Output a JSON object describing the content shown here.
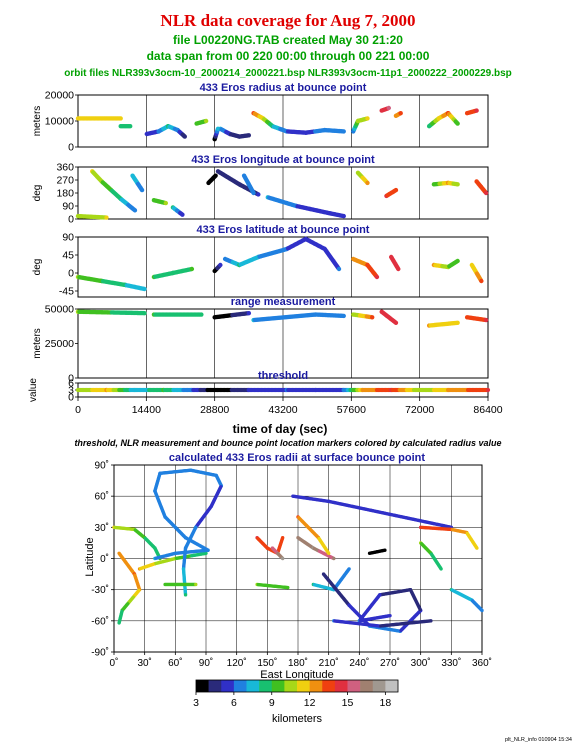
{
  "header": {
    "title": "NLR data coverage for Aug 7, 2000",
    "line1": "file L00220NG.TAB created May 30 21:20",
    "line2": "data span from 00 220 00:00 through 00 221 00:00",
    "line3": "orbit files NLR393v3ocm-10_2000214_2000221.bsp NLR393v3ocm-11p1_2000222_2000229.bsp"
  },
  "caption": "threshold, NLR measurement and bounce point location markers colored by calculated radius value",
  "footer": "plt_NLR_info 010904 15:34",
  "colors": {
    "title": "#e00000",
    "header": "#00a000",
    "panel_title": "#1a1aa0",
    "axis": "#000000"
  },
  "colorbar": {
    "label": "kilometers",
    "ticks": [
      "3",
      "6",
      "9",
      "12",
      "15",
      "18"
    ],
    "range": [
      3,
      19
    ],
    "colors": [
      "#000000",
      "#2a2a7a",
      "#3030c8",
      "#2080e0",
      "#18b8d8",
      "#18c070",
      "#40c020",
      "#a8d818",
      "#f0d010",
      "#f09010",
      "#f04010",
      "#e03040",
      "#d06080",
      "#a08070",
      "#a09890",
      "#c0c0c0"
    ]
  },
  "chart_data": [
    {
      "type": "scatter",
      "title": "433 Eros radius at bounce point",
      "ylabel": "meters",
      "xlabel": "",
      "xlim": [
        0,
        86400
      ],
      "ylim": [
        0,
        20000
      ],
      "yticks": [
        "20000",
        "10000",
        "0"
      ],
      "segments": [
        [
          [
            0,
            11000,
            11
          ],
          [
            9000,
            11000,
            11
          ]
        ],
        [
          [
            9000,
            8000,
            8
          ],
          [
            11000,
            8000,
            8
          ]
        ],
        [
          [
            14500,
            5000,
            5
          ],
          [
            17000,
            6000,
            6
          ],
          [
            19000,
            8000,
            8
          ],
          [
            21000,
            6500,
            6.5
          ],
          [
            22500,
            4000,
            4
          ]
        ],
        [
          [
            25000,
            9000,
            9
          ],
          [
            27000,
            10000,
            10
          ]
        ],
        [
          [
            28800,
            3000,
            3
          ],
          [
            29500,
            7000,
            7
          ]
        ],
        [
          [
            30000,
            7000,
            7
          ],
          [
            32000,
            5000,
            5
          ],
          [
            34000,
            4000,
            4
          ],
          [
            36000,
            4500,
            4.5
          ]
        ],
        [
          [
            37000,
            13000,
            13
          ],
          [
            39000,
            11000,
            11
          ],
          [
            41000,
            8000,
            8
          ],
          [
            44000,
            6000,
            6
          ],
          [
            48000,
            5500,
            5.5
          ],
          [
            52000,
            6500,
            6.5
          ],
          [
            56000,
            6000,
            6
          ]
        ],
        [
          [
            58000,
            6000,
            6
          ],
          [
            59000,
            10000,
            10
          ],
          [
            61000,
            11000,
            11
          ]
        ],
        [
          [
            64000,
            14000,
            14
          ],
          [
            65500,
            15000,
            15
          ]
        ],
        [
          [
            67000,
            12000,
            12
          ],
          [
            68000,
            13000,
            13
          ]
        ],
        [
          [
            74000,
            8000,
            8
          ],
          [
            76000,
            11000,
            11
          ],
          [
            78000,
            13000,
            13
          ],
          [
            80000,
            9000,
            9
          ]
        ],
        [
          [
            82000,
            13000,
            13
          ],
          [
            84000,
            14000,
            14
          ]
        ]
      ]
    },
    {
      "type": "scatter",
      "title": "433 Eros longitude at bounce point",
      "ylabel": "deg",
      "xlabel": "",
      "xlim": [
        0,
        86400
      ],
      "ylim": [
        0,
        360
      ],
      "yticks": [
        "360",
        "270",
        "180",
        "90",
        "0"
      ],
      "segments": [
        [
          [
            0,
            20,
            10
          ],
          [
            6000,
            10,
            11
          ]
        ],
        [
          [
            3000,
            330,
            11
          ],
          [
            5000,
            260,
            10
          ],
          [
            9000,
            140,
            8
          ],
          [
            12000,
            60,
            6
          ]
        ],
        [
          [
            11500,
            300,
            7
          ],
          [
            12500,
            250,
            7
          ],
          [
            13500,
            200,
            6
          ]
        ],
        [
          [
            16000,
            130,
            9
          ],
          [
            18500,
            110,
            10
          ]
        ],
        [
          [
            20000,
            80,
            8
          ],
          [
            22000,
            30,
            5
          ]
        ],
        [
          [
            27500,
            250,
            3
          ],
          [
            29000,
            300,
            3
          ]
        ],
        [
          [
            29500,
            330,
            4
          ],
          [
            34000,
            240,
            4.5
          ],
          [
            38000,
            170,
            5
          ]
        ],
        [
          [
            35000,
            300,
            6
          ],
          [
            37000,
            180,
            6
          ]
        ],
        [
          [
            40000,
            150,
            7
          ],
          [
            46000,
            90,
            6
          ],
          [
            53000,
            40,
            5.5
          ],
          [
            56000,
            20,
            5
          ]
        ],
        [
          [
            59000,
            320,
            10
          ],
          [
            61000,
            250,
            12
          ]
        ],
        [
          [
            65000,
            160,
            14
          ],
          [
            67000,
            200,
            13
          ]
        ],
        [
          [
            75000,
            240,
            9
          ],
          [
            78000,
            250,
            12
          ],
          [
            80000,
            240,
            10
          ]
        ],
        [
          [
            84000,
            260,
            13
          ],
          [
            86000,
            180,
            14
          ]
        ]
      ]
    },
    {
      "type": "scatter",
      "title": "433 Eros latitude at bounce point",
      "ylabel": "deg",
      "xlabel": "",
      "xlim": [
        0,
        86400
      ],
      "ylim": [
        -60,
        90
      ],
      "yticks": [
        "90",
        "45",
        "0",
        "-45"
      ],
      "segments": [
        [
          [
            0,
            -10,
            10
          ],
          [
            5000,
            -20,
            9
          ],
          [
            10000,
            -30,
            8
          ],
          [
            14000,
            -40,
            7
          ]
        ],
        [
          [
            16000,
            -10,
            9
          ],
          [
            20000,
            0,
            8
          ],
          [
            24000,
            10,
            9
          ]
        ],
        [
          [
            28800,
            5,
            3
          ],
          [
            30000,
            20,
            5
          ]
        ],
        [
          [
            31000,
            35,
            6
          ],
          [
            34000,
            20,
            8
          ],
          [
            38000,
            40,
            7
          ],
          [
            44000,
            60,
            6
          ],
          [
            48000,
            85,
            5
          ],
          [
            52000,
            60,
            5
          ],
          [
            55000,
            10,
            6
          ]
        ],
        [
          [
            58000,
            35,
            12
          ],
          [
            61000,
            20,
            13
          ],
          [
            63000,
            -10,
            14
          ]
        ],
        [
          [
            66000,
            40,
            14
          ],
          [
            67500,
            10,
            14
          ]
        ],
        [
          [
            75000,
            20,
            12
          ],
          [
            78000,
            15,
            10
          ],
          [
            80000,
            30,
            9
          ]
        ],
        [
          [
            83000,
            20,
            11
          ],
          [
            85000,
            -20,
            13
          ]
        ]
      ]
    },
    {
      "type": "scatter",
      "title": "range measurement",
      "ylabel": "meters",
      "xlabel": "",
      "xlim": [
        0,
        86400
      ],
      "ylim": [
        0,
        50000
      ],
      "yticks": [
        "50000",
        "25000",
        "0"
      ],
      "segments": [
        [
          [
            0,
            48000,
            10
          ],
          [
            14000,
            47000,
            8
          ]
        ],
        [
          [
            16000,
            46000,
            9
          ],
          [
            26000,
            46000,
            8
          ]
        ],
        [
          [
            28800,
            44000,
            3
          ],
          [
            36000,
            47000,
            5
          ]
        ],
        [
          [
            37000,
            42000,
            7
          ],
          [
            50000,
            46000,
            6
          ],
          [
            56000,
            45000,
            6
          ]
        ],
        [
          [
            58000,
            46000,
            10
          ],
          [
            62000,
            44000,
            13
          ]
        ],
        [
          [
            64000,
            48000,
            14
          ],
          [
            67000,
            40000,
            14
          ]
        ],
        [
          [
            74000,
            38000,
            12
          ],
          [
            80000,
            40000,
            11
          ]
        ],
        [
          [
            82000,
            44000,
            13
          ],
          [
            86000,
            42000,
            14
          ]
        ]
      ]
    },
    {
      "type": "scatter",
      "title": "threshold",
      "ylabel": "value",
      "xlabel": "time of day (sec)",
      "xlim": [
        0,
        86400
      ],
      "ylim": [
        0,
        6
      ],
      "yticks": [
        "6",
        "3",
        "0"
      ],
      "xticks": [
        "0",
        "14400",
        "28800",
        "43200",
        "57600",
        "72000",
        "86400"
      ],
      "segments": [
        [
          [
            0,
            3,
            10
          ],
          [
            6000,
            3,
            12
          ],
          [
            12000,
            3,
            7
          ],
          [
            18000,
            3,
            9
          ],
          [
            24000,
            3,
            6
          ],
          [
            28800,
            3,
            3
          ],
          [
            36000,
            3,
            5
          ],
          [
            44000,
            3,
            6
          ],
          [
            50000,
            3,
            5
          ],
          [
            56000,
            3,
            6
          ],
          [
            60000,
            3,
            12
          ],
          [
            66000,
            3,
            14
          ],
          [
            72000,
            3,
            10
          ],
          [
            78000,
            3,
            12
          ],
          [
            86400,
            3,
            14
          ]
        ]
      ]
    },
    {
      "type": "scatter",
      "title": "calculated 433 Eros radii at surface bounce point",
      "xlabel": "East Longitude",
      "ylabel": "Latitude",
      "xlim": [
        0,
        360
      ],
      "ylim": [
        -90,
        90
      ],
      "xticks": [
        "0˚",
        "30˚",
        "60˚",
        "90˚",
        "120˚",
        "150˚",
        "180˚",
        "210˚",
        "240˚",
        "270˚",
        "300˚",
        "330˚",
        "360˚"
      ],
      "yticks": [
        "90˚",
        "60˚",
        "30˚",
        "0˚",
        "-30˚",
        "-60˚",
        "-90˚"
      ],
      "segments": [
        [
          [
            0,
            30,
            11
          ],
          [
            20,
            28,
            10
          ],
          [
            30,
            20,
            9
          ],
          [
            40,
            10,
            8
          ],
          [
            45,
            0,
            9
          ]
        ],
        [
          [
            5,
            5,
            12
          ],
          [
            20,
            -15,
            13
          ],
          [
            25,
            -30,
            12
          ],
          [
            8,
            -50,
            9
          ],
          [
            5,
            -62,
            8
          ]
        ],
        [
          [
            25,
            -10,
            12
          ],
          [
            40,
            -5,
            11
          ],
          [
            60,
            0,
            10
          ],
          [
            90,
            5,
            8
          ]
        ],
        [
          [
            40,
            0,
            7
          ],
          [
            60,
            5,
            6
          ],
          [
            92,
            8,
            6
          ],
          [
            70,
            20,
            6
          ],
          [
            50,
            40,
            6
          ],
          [
            40,
            65,
            6
          ],
          [
            45,
            82,
            6
          ],
          [
            75,
            85,
            6
          ],
          [
            100,
            80,
            6
          ],
          [
            105,
            70,
            6
          ],
          [
            95,
            50,
            5
          ],
          [
            80,
            30,
            6
          ],
          [
            70,
            10,
            6
          ],
          [
            68,
            -10,
            7
          ],
          [
            70,
            -35,
            8
          ]
        ],
        [
          [
            50,
            -25,
            9
          ],
          [
            80,
            -25,
            10
          ]
        ],
        [
          [
            140,
            20,
            14
          ],
          [
            150,
            10,
            13
          ],
          [
            160,
            5,
            14
          ],
          [
            165,
            20,
            13
          ]
        ],
        [
          [
            155,
            10,
            15
          ],
          [
            165,
            0,
            17
          ]
        ],
        [
          [
            180,
            20,
            16
          ],
          [
            195,
            10,
            17
          ],
          [
            205,
            5,
            15
          ],
          [
            215,
            0,
            16
          ]
        ],
        [
          [
            180,
            40,
            13
          ],
          [
            200,
            20,
            12
          ],
          [
            210,
            5,
            11
          ]
        ],
        [
          [
            140,
            -25,
            10
          ],
          [
            170,
            -28,
            9
          ]
        ],
        [
          [
            195,
            -25,
            8
          ],
          [
            215,
            -30,
            7
          ],
          [
            230,
            -10,
            6
          ]
        ],
        [
          [
            175,
            60,
            5
          ],
          [
            210,
            55,
            5
          ],
          [
            330,
            30,
            5
          ]
        ],
        [
          [
            205,
            -15,
            4
          ],
          [
            230,
            -45,
            5
          ],
          [
            250,
            -65,
            6
          ],
          [
            280,
            -70,
            6
          ],
          [
            300,
            -50,
            5
          ],
          [
            290,
            -30,
            4
          ],
          [
            260,
            -35,
            5
          ],
          [
            240,
            -60,
            6
          ],
          [
            270,
            -55,
            5
          ]
        ],
        [
          [
            215,
            -60,
            6
          ],
          [
            260,
            -65,
            5
          ],
          [
            310,
            -60,
            4
          ]
        ],
        [
          [
            250,
            5,
            3
          ],
          [
            265,
            8,
            3
          ]
        ],
        [
          [
            300,
            15,
            10
          ],
          [
            310,
            5,
            9
          ],
          [
            320,
            -10,
            8
          ]
        ],
        [
          [
            300,
            30,
            14
          ],
          [
            330,
            28,
            13
          ],
          [
            345,
            25,
            12
          ],
          [
            355,
            10,
            11
          ]
        ],
        [
          [
            330,
            -30,
            8
          ],
          [
            350,
            -40,
            7
          ],
          [
            360,
            -50,
            6
          ]
        ]
      ]
    }
  ]
}
